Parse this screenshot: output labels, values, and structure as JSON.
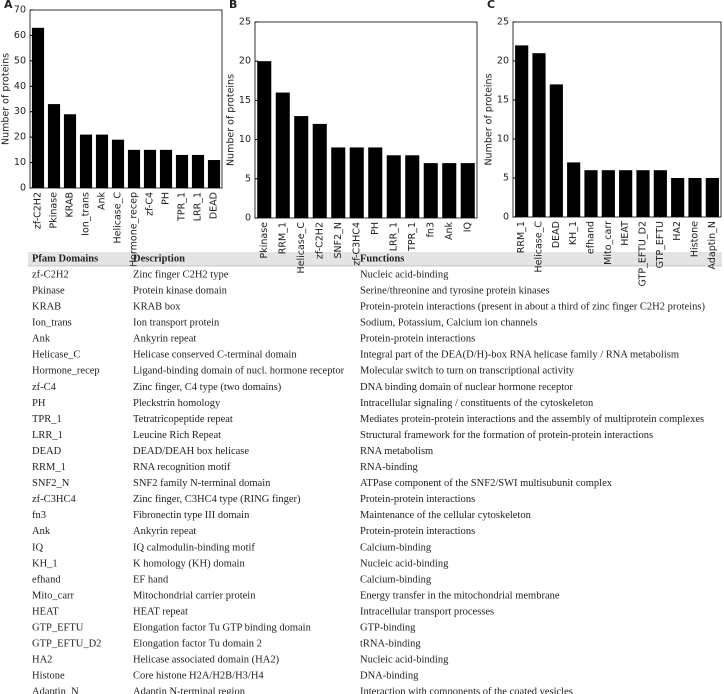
{
  "chart_data": [
    {
      "type": "bar",
      "panel": "A",
      "ylabel": "Number of proteins",
      "color": "#000000",
      "categories": [
        "zf-C2H2",
        "Pkinase",
        "KRAB",
        "Ion_trans",
        "Ank",
        "Helicase_C",
        "Hormone_recep",
        "zf-C4",
        "PH",
        "TPR_1",
        "LRR_1",
        "DEAD"
      ],
      "values": [
        63,
        33,
        29,
        21,
        21,
        19,
        15,
        15,
        15,
        13,
        13,
        11
      ],
      "ylim": [
        0,
        70
      ],
      "yticks": [
        0,
        10,
        20,
        30,
        40,
        50,
        60,
        70
      ],
      "grid": false
    },
    {
      "type": "bar",
      "panel": "B",
      "ylabel": "Number of proteins",
      "color": "#000000",
      "categories": [
        "Pkinase",
        "RRM_1",
        "Helicase_C",
        "zf-C2H2",
        "SNF2_N",
        "zf-C3HC4",
        "PH",
        "LRR_1",
        "TPR_1",
        "fn3",
        "Ank",
        "IQ"
      ],
      "values": [
        20,
        16,
        13,
        12,
        9,
        9,
        9,
        8,
        8,
        7,
        7,
        7
      ],
      "ylim": [
        0,
        25
      ],
      "yticks": [
        0,
        5,
        10,
        15,
        20,
        25
      ],
      "grid": false
    },
    {
      "type": "bar",
      "panel": "C",
      "ylabel": "Number of proteins",
      "color": "#000000",
      "categories": [
        "RRM_1",
        "Helicase_C",
        "DEAD",
        "KH_1",
        "efhand",
        "Mito_carr",
        "HEAT",
        "GTP_EFTU_D2",
        "GTP_EFTU",
        "HA2",
        "Histone",
        "Adaptin_N"
      ],
      "values": [
        22,
        21,
        17,
        7,
        6,
        6,
        6,
        6,
        6,
        5,
        5,
        5
      ],
      "ylim": [
        0,
        25
      ],
      "yticks": [
        0,
        5,
        10,
        15,
        20,
        25
      ],
      "grid": false
    }
  ],
  "table": {
    "header": [
      "Pfam Domains",
      "Description",
      "Functions"
    ],
    "rows": [
      [
        "zf-C2H2",
        "Zinc finger C2H2 type",
        "Nucleic acid-binding"
      ],
      [
        "Pkinase",
        "Protein kinase domain",
        "Serine/threonine and tyrosine protein kinases"
      ],
      [
        "KRAB",
        "KRAB box",
        "Protein-protein interactions (present in about a third of zinc finger C2H2 proteins)"
      ],
      [
        "Ion_trans",
        "Ion transport protein",
        "Sodium, Potassium, Calcium ion channels"
      ],
      [
        "Ank",
        "Ankyrin repeat",
        "Protein-protein interactions"
      ],
      [
        "Helicase_C",
        "Helicase conserved C-terminal domain",
        "Integral part of the DEA(D/H)-box RNA helicase family / RNA metabolism"
      ],
      [
        "Hormone_recep",
        "Ligand-binding domain of nucl. hormone receptor",
        "Molecular switch to turn on transcriptional activity"
      ],
      [
        "zf-C4",
        "Zinc finger, C4 type (two domains)",
        "DNA binding domain of nuclear hormone receptor"
      ],
      [
        "PH",
        "Pleckstrin homology",
        "Intracellular signaling / constituents of the cytoskeleton"
      ],
      [
        "TPR_1",
        "Tetratricopeptide repeat",
        "Mediates protein-protein interactions and the assembly of multiprotein complexes"
      ],
      [
        "LRR_1",
        "Leucine Rich Repeat",
        "Structural framework for the formation of protein-protein interactions"
      ],
      [
        "DEAD",
        "DEAD/DEAH box helicase",
        "RNA metabolism"
      ],
      [
        "RRM_1",
        "RNA recognition motif",
        "RNA-binding"
      ],
      [
        "SNF2_N",
        "SNF2 family N-terminal domain",
        "ATPase component of the SNF2/SWI multisubunit complex"
      ],
      [
        "zf-C3HC4",
        "Zinc finger, C3HC4 type (RING finger)",
        "Protein-protein interactions"
      ],
      [
        "fn3",
        "Fibronectin type III domain",
        "Maintenance of the cellular cytoskeleton"
      ],
      [
        "Ank",
        "Ankyrin repeat",
        "Protein-protein interactions"
      ],
      [
        "IQ",
        "IQ calmodulin-binding motif",
        "Calcium-binding"
      ],
      [
        "KH_1",
        "K homology (KH) domain",
        "Nucleic acid-binding"
      ],
      [
        "efhand",
        "EF hand",
        "Calcium-binding"
      ],
      [
        "Mito_carr",
        "Mitochondrial carrier protein",
        "Energy transfer in the mitochondrial membrane"
      ],
      [
        "HEAT",
        "HEAT repeat",
        "Intracellular transport processes"
      ],
      [
        "GTP_EFTU",
        "Elongation factor Tu GTP binding domain",
        "GTP-binding"
      ],
      [
        "GTP_EFTU_D2",
        "Elongation factor Tu domain 2",
        "tRNA-binding"
      ],
      [
        "HA2",
        "Helicase associated domain (HA2)",
        "Nucleic acid-binding"
      ],
      [
        "Histone",
        "Core histone H2A/H2B/H3/H4",
        "DNA-binding"
      ],
      [
        "Adaptin_N",
        "Adaptin N-terminal region",
        "Interaction with components of the coated vesicles"
      ]
    ]
  }
}
